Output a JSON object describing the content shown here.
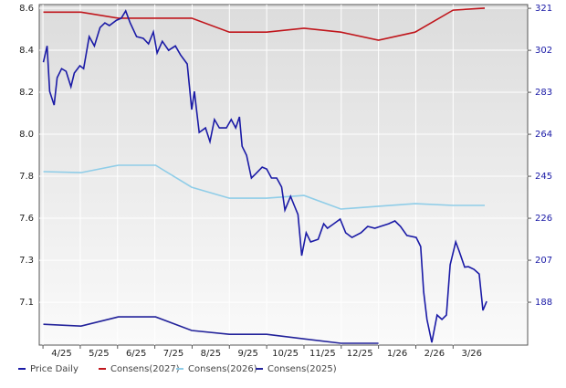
{
  "chart_data": {
    "type": "line",
    "categories": [
      "4/25",
      "5/25",
      "6/25",
      "7/25",
      "8/25",
      "9/25",
      "10/25",
      "11/25",
      "12/25",
      "1/26",
      "2/26",
      "3/26"
    ],
    "xlim": [
      -0.6,
      12.5
    ],
    "ylim": [
      6.916,
      8.618
    ],
    "yticks": [
      8.6,
      {
        "value": 8.39,
        "label": "8.4"
      },
      {
        "value": 8.18,
        "label": "8.2"
      },
      {
        "value": 7.97,
        "label": "8.0"
      },
      {
        "value": 7.76,
        "label": "7.8"
      },
      {
        "value": 7.55,
        "label": "7.6"
      },
      {
        "value": 7.34,
        "label": "7.3"
      },
      {
        "value": 7.13,
        "label": "7.1"
      }
    ],
    "y2lim": [
      168.6,
      322.7
    ],
    "y2ticks": [
      321,
      302,
      283,
      264,
      245,
      226,
      207,
      188
    ],
    "grid": true,
    "series": [
      {
        "name": "Price Daily",
        "color": "#1a1aa6",
        "axis": "y2",
        "x": [
          -0.49,
          -0.39,
          -0.32,
          -0.2,
          -0.12,
          0,
          0.12,
          0.25,
          0.34,
          0.49,
          0.59,
          0.74,
          0.88,
          1.03,
          1.16,
          1.28,
          1.47,
          1.6,
          1.72,
          1.84,
          2.01,
          2.19,
          2.33,
          2.46,
          2.56,
          2.7,
          2.87,
          3.05,
          3.19,
          3.37,
          3.49,
          3.56,
          3.69,
          3.86,
          3.98,
          4.1,
          4.23,
          4.42,
          4.55,
          4.67,
          4.77,
          4.84,
          4.96,
          5.09,
          5.21,
          5.38,
          5.5,
          5.63,
          5.77,
          5.9,
          5.99,
          6.14,
          6.24,
          6.34,
          6.44,
          6.56,
          6.68,
          6.88,
          7.03,
          7.13,
          7.3,
          7.47,
          7.62,
          7.79,
          8.03,
          8.21,
          8.4,
          8.55,
          8.77,
          8.94,
          9.09,
          9.26,
          9.51,
          9.63,
          9.71,
          9.8,
          9.93,
          10.07,
          10.2,
          10.32,
          10.42,
          10.57,
          10.66,
          10.81,
          10.91,
          11.06,
          11.2,
          11.3,
          11.4
        ],
        "values": [
          296.6,
          304,
          283.4,
          277.2,
          289.6,
          293.7,
          292.5,
          285.5,
          291.7,
          295,
          293.7,
          308.2,
          304,
          312.3,
          314.4,
          313.2,
          315.6,
          316.5,
          319.8,
          314.4,
          308.2,
          307.4,
          304.9,
          310.3,
          300.8,
          306.1,
          302,
          304,
          299.9,
          295.8,
          275.2,
          283.4,
          264.8,
          266.9,
          260.7,
          270.7,
          266.9,
          266.9,
          270.7,
          266.9,
          271.9,
          258.6,
          254.5,
          244.2,
          246.2,
          249.1,
          248.3,
          244.2,
          244.2,
          240.1,
          229.7,
          235.9,
          231.8,
          227.7,
          209.1,
          219.4,
          215.3,
          216.5,
          223.5,
          221.5,
          223.5,
          225.6,
          219.4,
          217.3,
          219.4,
          222.3,
          221.5,
          222.3,
          223.5,
          224.8,
          222.3,
          218.2,
          217.3,
          213.2,
          192.6,
          180.2,
          169.8,
          182.2,
          180.2,
          182.2,
          204.9,
          215.3,
          211.2,
          203.9,
          204.1,
          202.9,
          200.8,
          184.3,
          188.4
        ]
      },
      {
        "name": "Consens(2027)",
        "color": "#c0161c",
        "x": [
          -0.49,
          0.52,
          1.52,
          2.52,
          3.49,
          4.5,
          5.5,
          6.5,
          7.49,
          8.5,
          9.48,
          10.5,
          11.35
        ],
        "values": [
          8.58,
          8.58,
          8.55,
          8.55,
          8.55,
          8.48,
          8.48,
          8.5,
          8.48,
          8.44,
          8.48,
          8.59,
          8.6
        ]
      },
      {
        "name": "Consens(2026)",
        "color": "#8fcde8",
        "x": [
          -0.49,
          0.52,
          1.52,
          2.52,
          3.49,
          4.5,
          5.5,
          6.5,
          7.49,
          8.5,
          9.48,
          10.5,
          11.35
        ],
        "values": [
          7.783,
          7.778,
          7.815,
          7.815,
          7.705,
          7.65,
          7.65,
          7.664,
          7.596,
          7.61,
          7.623,
          7.614,
          7.614
        ]
      },
      {
        "name": "Consens(2025)",
        "color": "#22229a",
        "x": [
          -0.49,
          0.52,
          1.52,
          2.52,
          3.49,
          4.5,
          5.5,
          6.5,
          7.49,
          8.5
        ],
        "values": [
          7.02,
          7.011,
          7.057,
          7.057,
          6.989,
          6.97,
          6.97,
          6.947,
          6.925,
          6.925
        ]
      }
    ]
  }
}
